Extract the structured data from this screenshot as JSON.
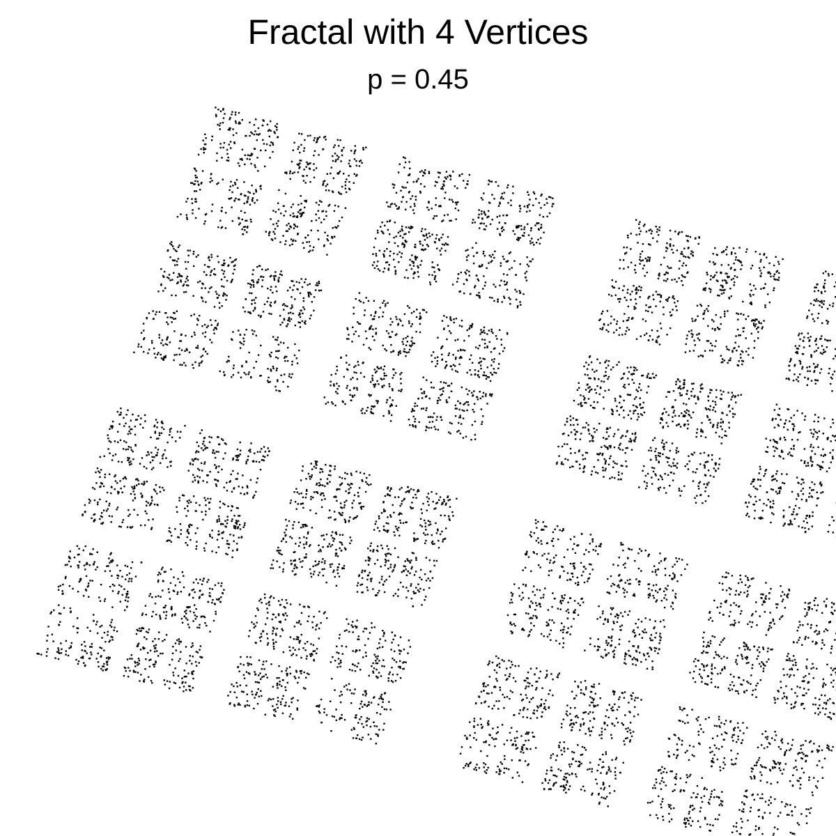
{
  "chart_data": {
    "type": "scatter",
    "title": "Fractal with 4 Vertices",
    "subtitle": "p = 0.45",
    "xlabel": "",
    "ylabel": "",
    "axes_visible": false,
    "grid": false,
    "legend": "none",
    "point_color": "#000000",
    "series": [
      {
        "vertices": [
          [
            0.0,
            0.0
          ],
          [
            1.0,
            0.0
          ],
          [
            1.0,
            1.0
          ],
          [
            0.0,
            1.0
          ]
        ],
        "jump_fraction": 0.45,
        "iterations": 9000
      }
    ]
  }
}
